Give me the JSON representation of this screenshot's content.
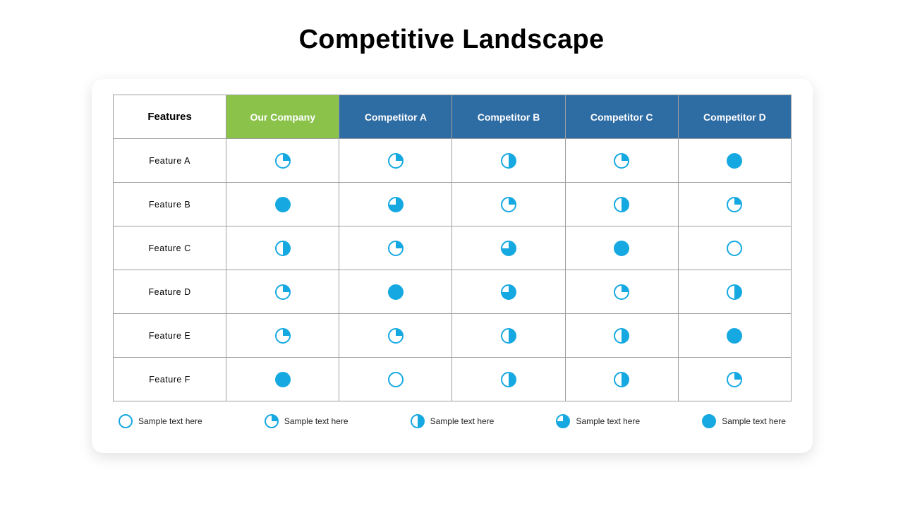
{
  "title": "Competitive Landscape",
  "pie": {
    "fill_color": "#16a9e1",
    "stroke_color": "#16a9e1",
    "stroke_width": 2,
    "size_cell": 22,
    "size_legend": 20
  },
  "table": {
    "header_features_bg": "#ffffff",
    "header_ours_bg": "#8bc34a",
    "header_comp_bg": "#2e6ca4",
    "header_text_color": "#ffffff",
    "border_color": "#9e9e9e",
    "columns": [
      {
        "key": "features",
        "label": "Features",
        "type": "features"
      },
      {
        "key": "ours",
        "label": "Our Company",
        "type": "ours"
      },
      {
        "key": "compA",
        "label": "Competitor A",
        "type": "comp"
      },
      {
        "key": "compB",
        "label": "Competitor B",
        "type": "comp"
      },
      {
        "key": "compC",
        "label": "Competitor C",
        "type": "comp"
      },
      {
        "key": "compD",
        "label": "Competitor D",
        "type": "comp"
      }
    ],
    "rows": [
      {
        "label": "Feature A",
        "values": [
          0.25,
          0.25,
          0.5,
          0.25,
          1.0
        ]
      },
      {
        "label": "Feature B",
        "values": [
          1.0,
          0.75,
          0.25,
          0.5,
          0.25
        ]
      },
      {
        "label": "Feature C",
        "values": [
          0.5,
          0.25,
          0.75,
          1.0,
          0.0
        ]
      },
      {
        "label": "Feature D",
        "values": [
          0.25,
          1.0,
          0.75,
          0.25,
          0.5
        ]
      },
      {
        "label": "Feature E",
        "values": [
          0.25,
          0.25,
          0.5,
          0.5,
          1.0
        ]
      },
      {
        "label": "Feature F",
        "values": [
          1.0,
          0.0,
          0.5,
          0.5,
          0.25
        ]
      }
    ]
  },
  "legend": [
    {
      "value": 0.0,
      "label": "Sample text here"
    },
    {
      "value": 0.25,
      "label": "Sample text here"
    },
    {
      "value": 0.5,
      "label": "Sample text here"
    },
    {
      "value": 0.75,
      "label": "Sample text here"
    },
    {
      "value": 1.0,
      "label": "Sample text here"
    }
  ]
}
